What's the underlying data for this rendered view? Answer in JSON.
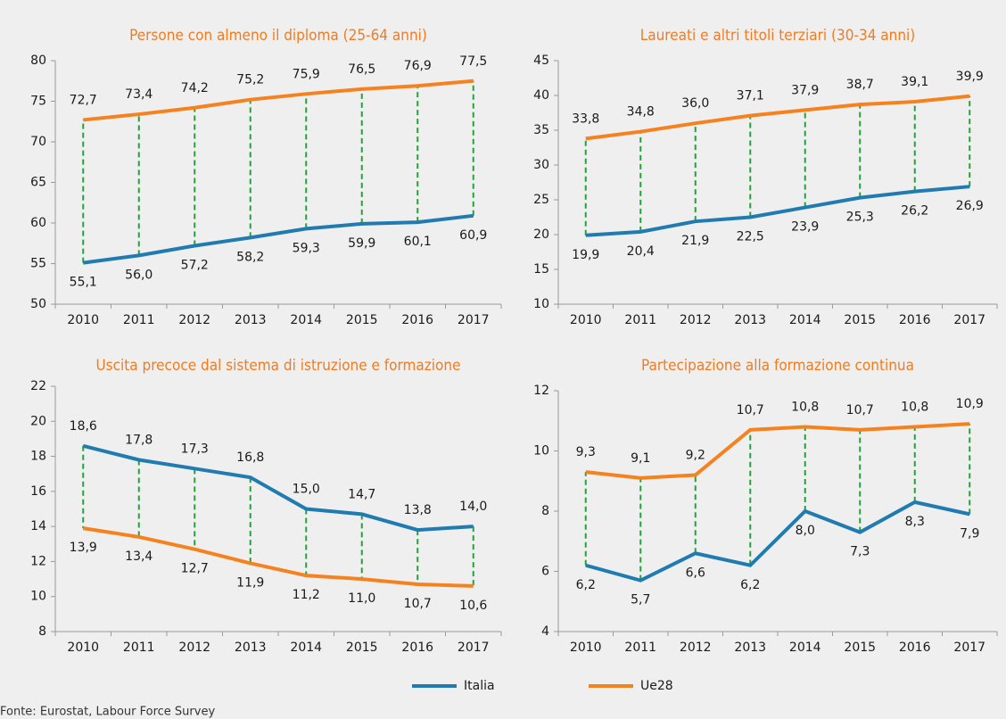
{
  "chart_data": [
    {
      "type": "line",
      "title": "Persone con almeno il diploma (25-64 anni)",
      "categories": [
        "2010",
        "2011",
        "2012",
        "2013",
        "2014",
        "2015",
        "2016",
        "2017"
      ],
      "series": [
        {
          "name": "Italia",
          "color": "#1f7bb0",
          "values": [
            55.1,
            56.0,
            57.2,
            58.2,
            59.3,
            59.9,
            60.1,
            60.9
          ],
          "value_labels": [
            "55,1",
            "56,0",
            "57,2",
            "58,2",
            "59,3",
            "59,9",
            "60,1",
            "60,9"
          ]
        },
        {
          "name": "Ue28",
          "color": "#f5821f",
          "values": [
            72.7,
            73.4,
            74.2,
            75.2,
            75.9,
            76.5,
            76.9,
            77.5
          ],
          "value_labels": [
            "72,7",
            "73,4",
            "74,2",
            "75,2",
            "75,9",
            "76,5",
            "76,9",
            "77,5"
          ]
        }
      ],
      "ylim": [
        50,
        80
      ],
      "yticks": [
        50,
        55,
        60,
        65,
        70,
        75,
        80
      ]
    },
    {
      "type": "line",
      "title": "Laureati e altri titoli terziari (30-34 anni)",
      "categories": [
        "2010",
        "2011",
        "2012",
        "2013",
        "2014",
        "2015",
        "2016",
        "2017"
      ],
      "series": [
        {
          "name": "Italia",
          "color": "#1f7bb0",
          "values": [
            19.9,
            20.4,
            21.9,
            22.5,
            23.9,
            25.3,
            26.2,
            26.9
          ],
          "value_labels": [
            "19,9",
            "20,4",
            "21,9",
            "22,5",
            "23,9",
            "25,3",
            "26,2",
            "26,9"
          ]
        },
        {
          "name": "Ue28",
          "color": "#f5821f",
          "values": [
            33.8,
            34.8,
            36.0,
            37.1,
            37.9,
            38.7,
            39.1,
            39.9
          ],
          "value_labels": [
            "33,8",
            "34,8",
            "36,0",
            "37,1",
            "37,9",
            "38,7",
            "39,1",
            "39,9"
          ]
        }
      ],
      "ylim": [
        10,
        45
      ],
      "yticks": [
        10,
        15,
        20,
        25,
        30,
        35,
        40,
        45
      ]
    },
    {
      "type": "line",
      "title": "Uscita precoce dal sistema di istruzione e formazione",
      "categories": [
        "2010",
        "2011",
        "2012",
        "2013",
        "2014",
        "2015",
        "2016",
        "2017"
      ],
      "series": [
        {
          "name": "Italia",
          "color": "#1f7bb0",
          "values": [
            18.6,
            17.8,
            17.3,
            16.8,
            15.0,
            14.7,
            13.8,
            14.0
          ],
          "value_labels": [
            "18,6",
            "17,8",
            "17,3",
            "16,8",
            "15,0",
            "14,7",
            "13,8",
            "14,0"
          ]
        },
        {
          "name": "Ue28",
          "color": "#f5821f",
          "values": [
            13.9,
            13.4,
            12.7,
            11.9,
            11.2,
            11.0,
            10.7,
            10.6
          ],
          "value_labels": [
            "13,9",
            "13,4",
            "12,7",
            "11,9",
            "11,2",
            "11,0",
            "10,7",
            "10,6"
          ]
        }
      ],
      "ylim": [
        8,
        22
      ],
      "yticks": [
        8,
        10,
        12,
        14,
        16,
        18,
        20,
        22
      ]
    },
    {
      "type": "line",
      "title": "Partecipazione alla formazione continua",
      "categories": [
        "2010",
        "2011",
        "2012",
        "2013",
        "2014",
        "2015",
        "2016",
        "2017"
      ],
      "series": [
        {
          "name": "Italia",
          "color": "#1f7bb0",
          "values": [
            6.2,
            5.7,
            6.6,
            6.2,
            8.0,
            7.3,
            8.3,
            7.9
          ],
          "value_labels": [
            "6,2",
            "5,7",
            "6,6",
            "6,2",
            "8,0",
            "7,3",
            "8,3",
            "7,9"
          ]
        },
        {
          "name": "Ue28",
          "color": "#f5821f",
          "values": [
            9.3,
            9.1,
            9.2,
            10.7,
            10.8,
            10.7,
            10.8,
            10.9
          ],
          "value_labels": [
            "9,3",
            "9,1",
            "9,2",
            "10,7",
            "10,8",
            "10,7",
            "10,8",
            "10,9"
          ]
        }
      ],
      "ylim": [
        4,
        12
      ],
      "yticks": [
        4,
        6,
        8,
        10,
        12
      ]
    }
  ],
  "source": "Fonte: Eurostat, Labour Force Survey"
}
